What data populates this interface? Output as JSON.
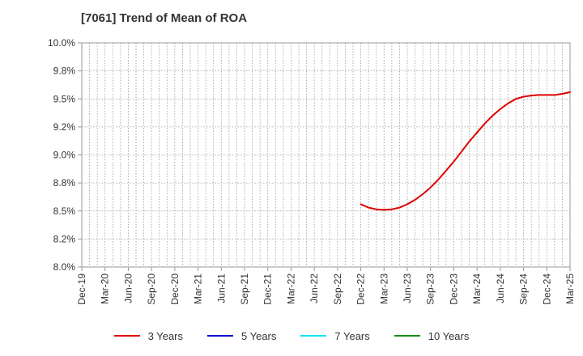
{
  "chart_data": {
    "type": "line",
    "title": "[7061]  Trend of Mean of ROA",
    "xlabel": "",
    "ylabel": "",
    "x": [
      "Dec-19",
      "Mar-20",
      "Jun-20",
      "Sep-20",
      "Dec-20",
      "Mar-21",
      "Jun-21",
      "Sep-21",
      "Dec-21",
      "Mar-22",
      "Jun-22",
      "Sep-22",
      "Dec-22",
      "Mar-23",
      "Jun-23",
      "Sep-23",
      "Dec-23",
      "Mar-24",
      "Jun-24",
      "Sep-24",
      "Dec-24",
      "Mar-25"
    ],
    "yticks": [
      "8.0%",
      "8.2%",
      "8.5%",
      "8.8%",
      "9.0%",
      "9.2%",
      "9.5%",
      "9.8%",
      "10.0%"
    ],
    "ylim": [
      8.0,
      10.0
    ],
    "grid": true,
    "legend_position": "bottom",
    "series": [
      {
        "name": "3 Years",
        "color": "#e00000",
        "points": [
          [
            "Dec-22",
            8.56
          ],
          [
            "Jan-23",
            8.53
          ],
          [
            "Feb-23",
            8.515
          ],
          [
            "Mar-23",
            8.51
          ],
          [
            "Apr-23",
            8.515
          ],
          [
            "May-23",
            8.53
          ],
          [
            "Jun-23",
            8.56
          ],
          [
            "Jul-23",
            8.6
          ],
          [
            "Aug-23",
            8.65
          ],
          [
            "Sep-23",
            8.71
          ],
          [
            "Oct-23",
            8.78
          ],
          [
            "Nov-23",
            8.86
          ],
          [
            "Dec-23",
            8.94
          ],
          [
            "Jan-24",
            9.03
          ],
          [
            "Feb-24",
            9.12
          ],
          [
            "Mar-24",
            9.2
          ],
          [
            "Apr-24",
            9.28
          ],
          [
            "May-24",
            9.35
          ],
          [
            "Jun-24",
            9.41
          ],
          [
            "Jul-24",
            9.46
          ],
          [
            "Aug-24",
            9.5
          ],
          [
            "Sep-24",
            9.52
          ],
          [
            "Oct-24",
            9.53
          ],
          [
            "Nov-24",
            9.535
          ],
          [
            "Dec-24",
            9.535
          ],
          [
            "Jan-25",
            9.535
          ],
          [
            "Feb-25",
            9.545
          ],
          [
            "Mar-25",
            9.56
          ]
        ]
      },
      {
        "name": "5 Years",
        "color": "#0000cc",
        "points": []
      },
      {
        "name": "7 Years",
        "color": "#00e5ee",
        "points": []
      },
      {
        "name": "10 Years",
        "color": "#1a8a1a",
        "points": []
      }
    ]
  }
}
